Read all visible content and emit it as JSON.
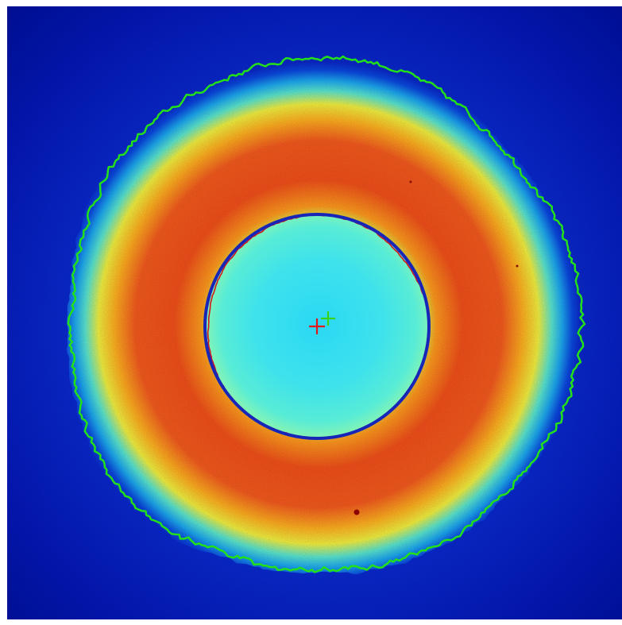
{
  "image": {
    "kind": "false-color intensity map",
    "colormap": "jet",
    "colors": {
      "background": "#0010b8",
      "outer_contour": "#22e01a",
      "inner_fit_circle": "#1826b8",
      "inner_contour": "#d01818",
      "center_marker_primary": "#e01a1a",
      "center_marker_secondary": "#38d21a",
      "hot_spot": "#8a0000"
    },
    "markers": [
      {
        "name": "center-red",
        "color": "#e01a1a"
      },
      {
        "name": "center-green",
        "color": "#38d21a"
      }
    ]
  }
}
